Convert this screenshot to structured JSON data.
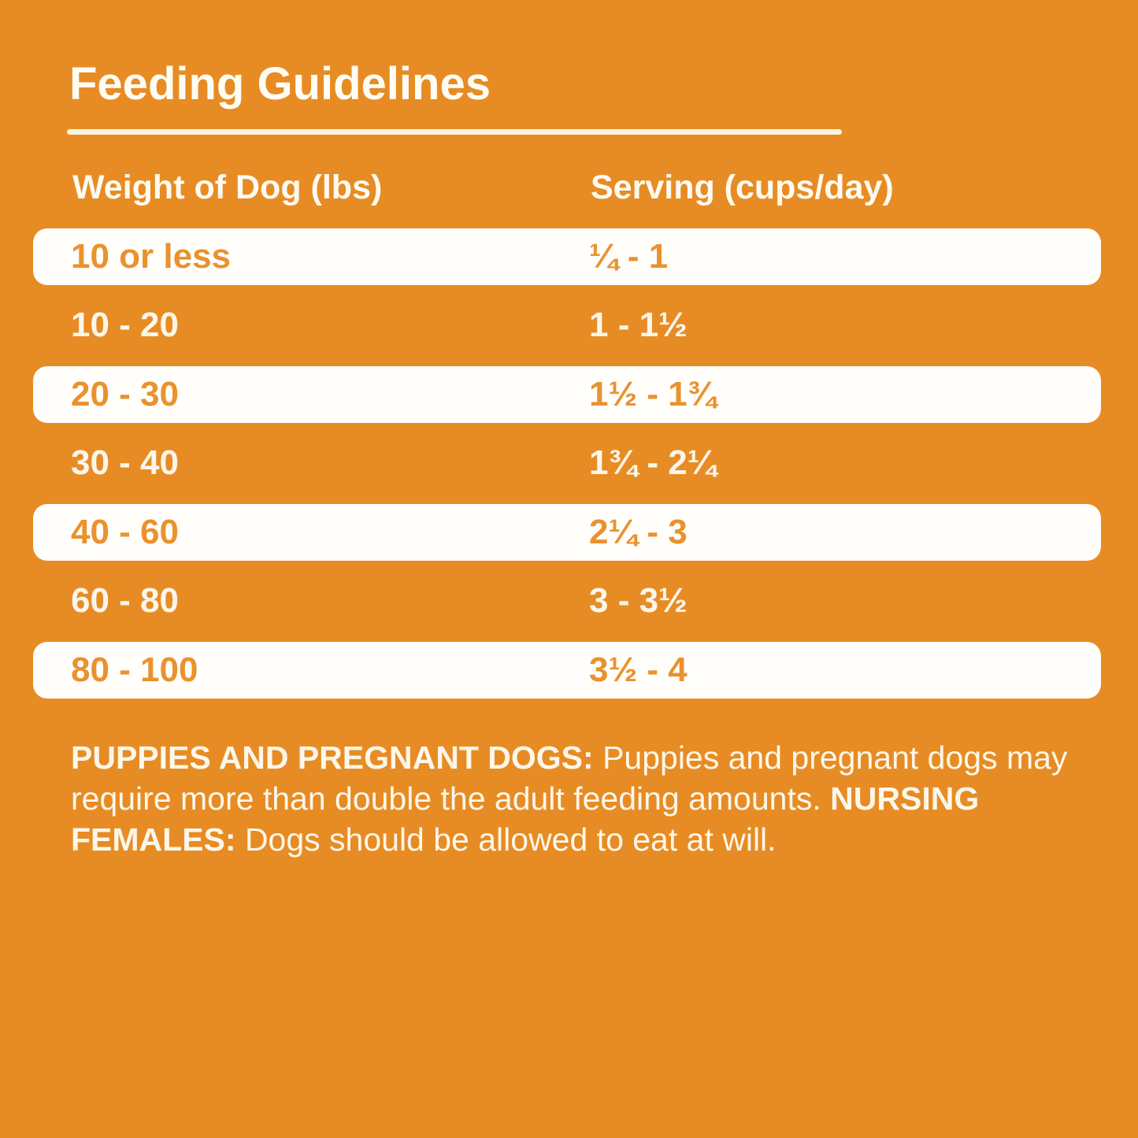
{
  "page": {
    "title": "Feeding Guidelines",
    "colors": {
      "background": "#E78C24",
      "pill_background": "#FFFEFB",
      "pill_text_orange": "#E9922E",
      "cream_text": "#FCF7EA",
      "rule_cream": "#FBF5E0"
    }
  },
  "table": {
    "columns": {
      "weight": "Weight of Dog (lbs)",
      "serving": "Serving (cups/day)"
    },
    "rows": [
      {
        "weight": "10 or less",
        "serving": "¼ - 1",
        "highlight": true
      },
      {
        "weight": "10 - 20",
        "serving": "1 - 1½",
        "highlight": false
      },
      {
        "weight": "20 - 30",
        "serving": "1½ - 1¾",
        "highlight": true
      },
      {
        "weight": "30 - 40",
        "serving": "1¾ - 2¼",
        "highlight": false
      },
      {
        "weight": "40 - 60",
        "serving": "2¼ - 3",
        "highlight": true
      },
      {
        "weight": "60 - 80",
        "serving": "3 - 3½",
        "highlight": false
      },
      {
        "weight": "80 - 100",
        "serving": "3½ - 4",
        "highlight": true
      }
    ]
  },
  "notes": {
    "segments": [
      {
        "text": "PUPPIES AND PREGNANT DOGS: ",
        "bold": true
      },
      {
        "text": "Puppies and pregnant dogs may require more than double the adult feeding amounts. ",
        "bold": false
      },
      {
        "text": "NURSING FEMALES: ",
        "bold": true
      },
      {
        "text": "Dogs should be allowed to eat at will.",
        "bold": false
      }
    ]
  }
}
